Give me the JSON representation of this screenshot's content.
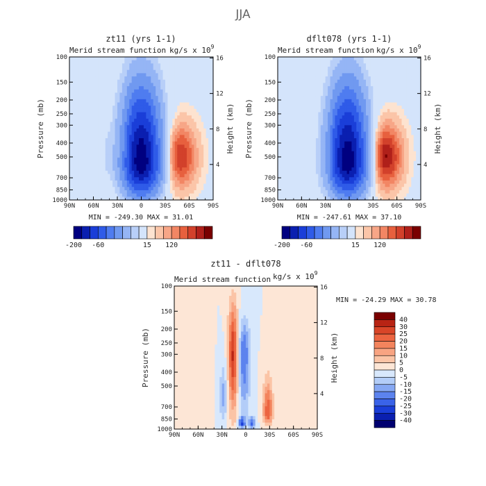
{
  "page_title": "JJA",
  "colors": {
    "neg_scale": [
      "#000080",
      "#0a1fb0",
      "#1a3ed8",
      "#2f5be8",
      "#4f7cf0",
      "#7099f0",
      "#95b5f5",
      "#b8cff8",
      "#d4e4fb"
    ],
    "pos_scale": [
      "#fde3d0",
      "#fbc5a8",
      "#f7a687",
      "#f28664",
      "#e7603e",
      "#d2412b",
      "#b0201a",
      "#7a0000"
    ],
    "diff_scale": [
      "#000070",
      "#0a1fb0",
      "#1a3ed8",
      "#3a63e8",
      "#5c83ee",
      "#86a8f3",
      "#b3cdf8",
      "#d8e8fc",
      "#fde6d6",
      "#fbc4a6",
      "#f8a482",
      "#f3845d",
      "#ec6440",
      "#d94528",
      "#b82414",
      "#7a0000"
    ]
  },
  "panels": {
    "top_left": {
      "title": "zt11  (yrs 1-1)",
      "subtitle": "Merid stream function",
      "units_label": "kg/s x 10",
      "units_exp": "9",
      "stats": "MIN = -249.30   MAX =  31.01"
    },
    "top_right": {
      "title": "dflt078  (yrs 1-1)",
      "subtitle": "Merid stream function",
      "units_label": "kg/s x 10",
      "units_exp": "9",
      "stats": "MIN = -247.61   MAX =  37.10"
    },
    "bottom": {
      "title": "zt11 - dflt078",
      "subtitle": "Merid stream function",
      "units_label": "kg/s x 10",
      "units_exp": "9",
      "stats": "MIN = -24.29   MAX =  30.78"
    }
  },
  "axes": {
    "ylabel": "Pressure (mb)",
    "y2label": "Height (km)",
    "x_ticks": [
      "90N",
      "60N",
      "30N",
      "0",
      "30S",
      "60S",
      "90S"
    ],
    "x_values": [
      90,
      60,
      30,
      0,
      -30,
      -60,
      -90
    ],
    "p_ticks": [
      "100",
      "150",
      "200",
      "250",
      "300",
      "400",
      "500",
      "700",
      "850",
      "1000"
    ],
    "p_values": [
      100,
      150,
      200,
      250,
      300,
      400,
      500,
      700,
      850,
      1000
    ],
    "z_ticks": [
      "16",
      "12",
      "8",
      "4"
    ],
    "z_values": [
      16,
      12,
      8,
      4
    ]
  },
  "colorbar_top": {
    "labels": [
      "-200",
      "-60",
      "15",
      "120"
    ],
    "label_index": [
      0,
      3,
      9,
      12
    ]
  },
  "colorbar_diff": {
    "labels": [
      "40",
      "30",
      "25",
      "20",
      "15",
      "10",
      "5",
      "0",
      "-5",
      "-10",
      "-15",
      "-20",
      "-25",
      "-30",
      "-40"
    ]
  },
  "chart_data": [
    {
      "type": "heatmap",
      "title": "zt11  (yrs 1-1)",
      "subtitle": "Merid stream function",
      "units": "kg/s x 10^9",
      "xlabel": "",
      "ylabel": "Pressure (mb)",
      "y2label": "Height (km)",
      "xlim": [
        90,
        -90
      ],
      "ylim": [
        1000,
        100
      ],
      "min": -249.3,
      "max": 31.01,
      "features": [
        {
          "kind": "cell",
          "lat_center": 0,
          "lat_width": 22,
          "p_top": 140,
          "p_bottom": 1000,
          "p_peak": 550,
          "value": -249.3
        },
        {
          "kind": "cell",
          "lat_center": -48,
          "lat_width": 22,
          "p_top": 250,
          "p_bottom": 950,
          "p_peak": 500,
          "value": 31.01
        },
        {
          "kind": "cell",
          "lat_center": 22,
          "lat_width": 7,
          "p_top": 200,
          "p_bottom": 950,
          "p_peak": 500,
          "value": 15
        },
        {
          "kind": "cell",
          "lat_center": 42,
          "lat_width": 5,
          "p_top": 300,
          "p_bottom": 700,
          "p_peak": 500,
          "value": -10
        }
      ]
    },
    {
      "type": "heatmap",
      "title": "dflt078  (yrs 1-1)",
      "subtitle": "Merid stream function",
      "units": "kg/s x 10^9",
      "xlabel": "",
      "ylabel": "Pressure (mb)",
      "y2label": "Height (km)",
      "xlim": [
        90,
        -90
      ],
      "ylim": [
        1000,
        100
      ],
      "min": -247.61,
      "max": 37.1,
      "features": [
        {
          "kind": "cell",
          "lat_center": 2,
          "lat_width": 22,
          "p_top": 140,
          "p_bottom": 1000,
          "p_peak": 550,
          "value": -247.61
        },
        {
          "kind": "cell",
          "lat_center": -45,
          "lat_width": 22,
          "p_top": 250,
          "p_bottom": 950,
          "p_peak": 500,
          "value": 37.1
        },
        {
          "kind": "cell",
          "lat_center": 26,
          "lat_width": 6,
          "p_top": 200,
          "p_bottom": 950,
          "p_peak": 550,
          "value": 12
        }
      ]
    },
    {
      "type": "heatmap",
      "title": "zt11 - dflt078",
      "subtitle": "Merid stream function",
      "units": "kg/s x 10^9",
      "xlabel": "",
      "ylabel": "Pressure (mb)",
      "y2label": "Height (km)",
      "xlim": [
        90,
        -90
      ],
      "ylim": [
        1000,
        100
      ],
      "min": -24.29,
      "max": 30.78,
      "contour_levels": [
        -40,
        -30,
        -25,
        -20,
        -15,
        -10,
        -5,
        0,
        5,
        10,
        15,
        20,
        25,
        30,
        40
      ],
      "features": [
        {
          "kind": "cell",
          "lat_center": 16,
          "lat_width": 6,
          "p_top": 110,
          "p_bottom": 900,
          "p_peak": 300,
          "value": 30.78
        },
        {
          "kind": "cell",
          "lat_center": 2,
          "lat_width": 7,
          "p_top": 150,
          "p_bottom": 950,
          "p_peak": 300,
          "value": -20
        },
        {
          "kind": "cell",
          "lat_center": 28,
          "lat_width": 5,
          "p_top": 300,
          "p_bottom": 950,
          "p_peak": 600,
          "value": -12
        },
        {
          "kind": "cell",
          "lat_center": -28,
          "lat_width": 6,
          "p_top": 400,
          "p_bottom": 950,
          "p_peak": 780,
          "value": 25
        },
        {
          "kind": "cell",
          "lat_center": 5,
          "lat_width": 4,
          "p_top": 800,
          "p_bottom": 1000,
          "p_peak": 920,
          "value": -24.29
        },
        {
          "kind": "cell",
          "lat_center": -8,
          "lat_width": 4,
          "p_top": 800,
          "p_bottom": 1000,
          "p_peak": 920,
          "value": -22
        },
        {
          "kind": "cell",
          "lat_center": 48,
          "lat_width": 5,
          "p_top": 150,
          "p_bottom": 1000,
          "p_peak": 700,
          "value": 5
        }
      ]
    }
  ]
}
